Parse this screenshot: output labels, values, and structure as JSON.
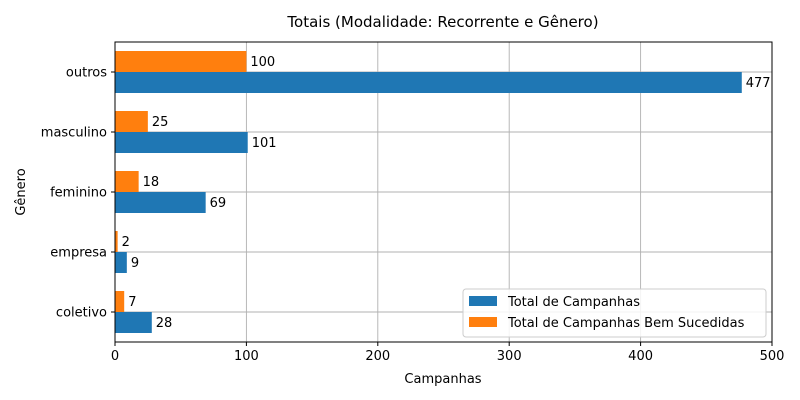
{
  "chart_data": {
    "type": "bar",
    "orientation": "horizontal",
    "title": "Totais (Modalidade: Recorrente e Gênero)",
    "xlabel": "Campanhas",
    "ylabel": "Gênero",
    "categories": [
      "coletivo",
      "empresa",
      "feminino",
      "masculino",
      "outros"
    ],
    "series": [
      {
        "name": "Total de Campanhas",
        "color": "#1f77b4",
        "values": [
          28,
          9,
          69,
          101,
          477
        ]
      },
      {
        "name": "Total de Campanhas Bem Sucedidas",
        "color": "#ff7f0e",
        "values": [
          7,
          2,
          18,
          25,
          100
        ]
      }
    ],
    "xlim": [
      0,
      500
    ],
    "xticks": [
      "0",
      "100",
      "200",
      "300",
      "400",
      "500"
    ],
    "grid": true,
    "legend_position": "lower-right",
    "data_labels": true
  }
}
